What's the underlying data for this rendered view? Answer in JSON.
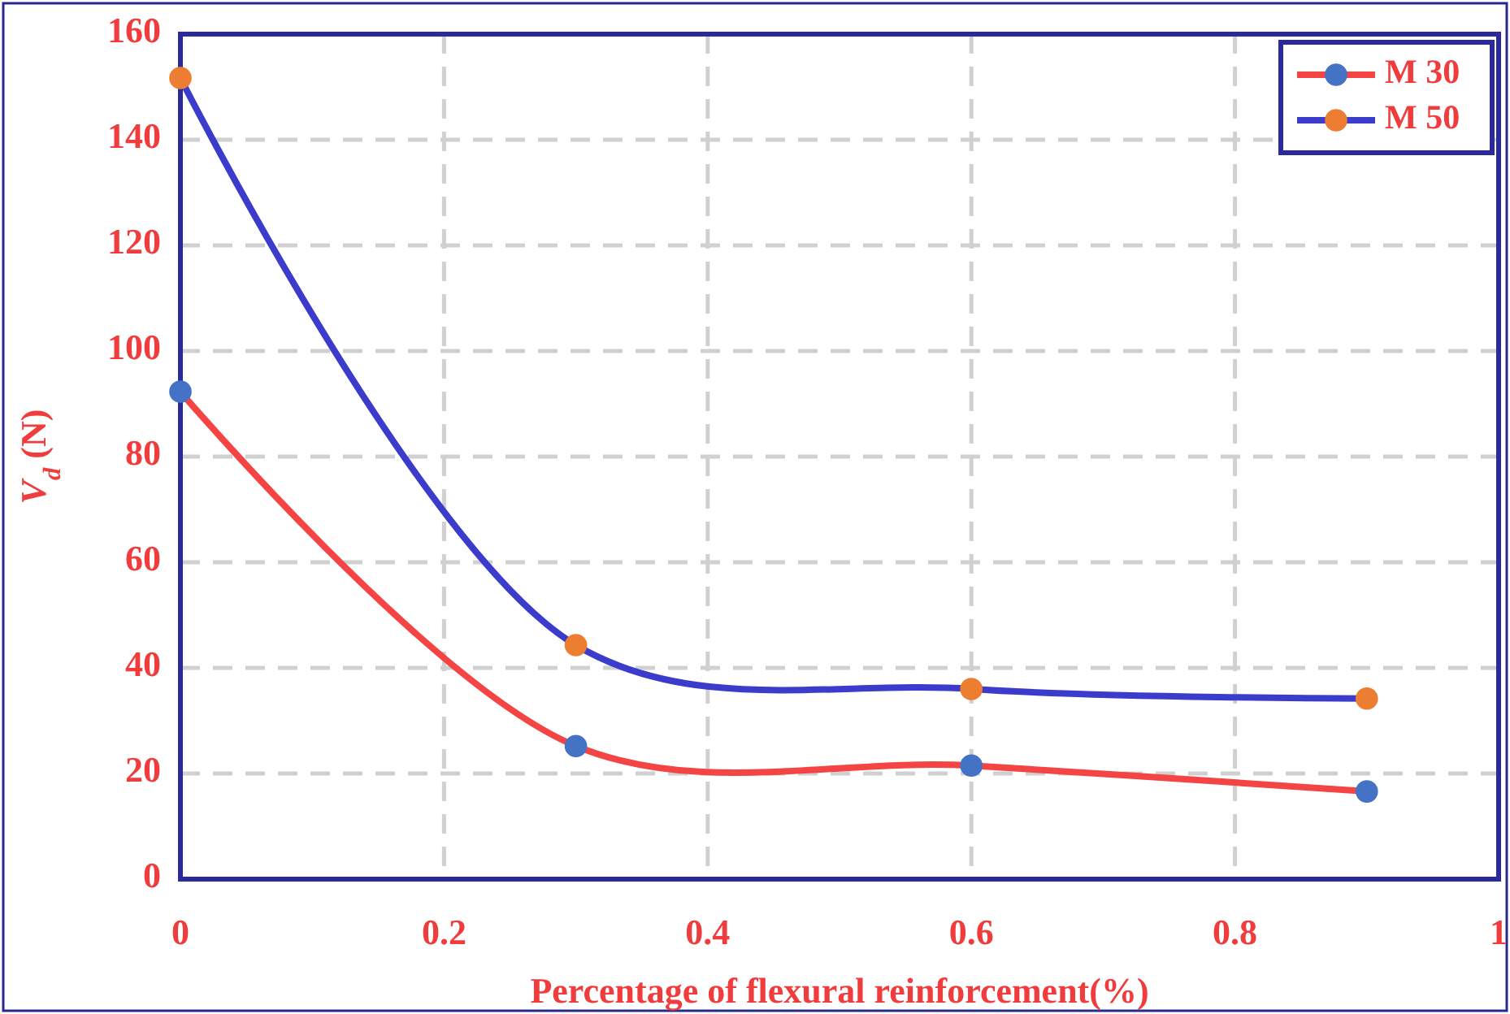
{
  "chart_data": {
    "type": "line",
    "xlabel": "Percentage of flexural reinforcement(%)",
    "ylabel": "V$_{d}$ (N)",
    "x": [
      0,
      0.3,
      0.6,
      0.9
    ],
    "series": [
      {
        "name": "M 30",
        "color": "#f44444",
        "colors": [
          "#4472c4",
          "#4472c4",
          "#4472c4",
          "#4472c4"
        ],
        "values": [
          92.3,
          25.2,
          21.5,
          16.6
        ]
      },
      {
        "name": "M 50",
        "color": "#3c3ccc",
        "colors": [
          "#ed7d31",
          "#ed7d31",
          "#ed7d31",
          "#ed7d31"
        ],
        "values": [
          151.7,
          44.3,
          36,
          34.2
        ]
      }
    ],
    "xlim": [
      0,
      1
    ],
    "xticks": [
      0,
      0.2,
      0.4,
      0.6,
      0.8,
      1
    ],
    "ylim": [
      0,
      160
    ],
    "yticks": [
      0,
      20,
      40,
      60,
      80,
      100,
      120,
      140,
      160
    ],
    "grid": true,
    "legend": "top right",
    "marker": "circle",
    "line_style": "solid"
  }
}
